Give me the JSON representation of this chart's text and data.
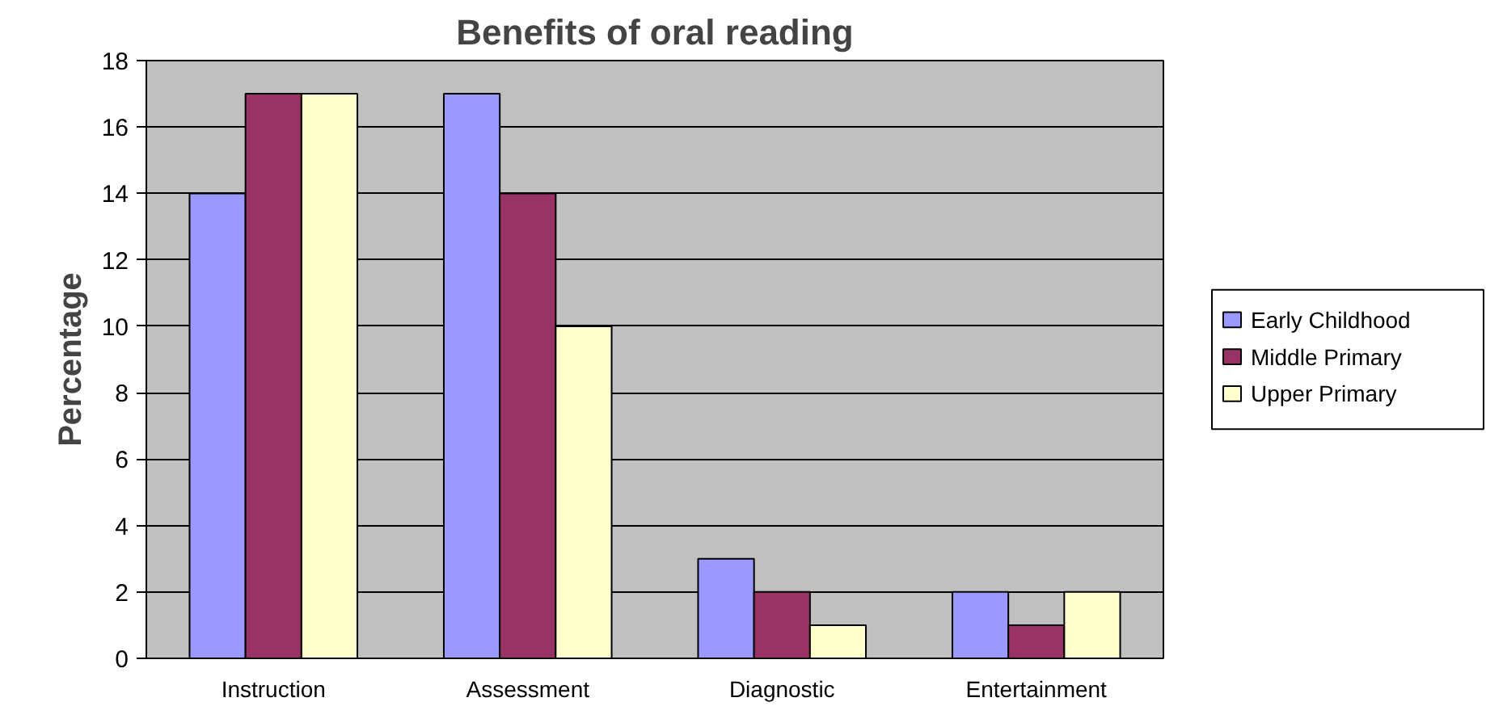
{
  "chart_data": {
    "type": "bar",
    "title": "Benefits of oral reading",
    "ylabel": "Percentage",
    "categories": [
      "Instruction",
      "Assessment",
      "Diagnostic",
      "Entertainment"
    ],
    "series": [
      {
        "name": "Early Childhood",
        "color": "#9999ff",
        "values": [
          14,
          17,
          3,
          2
        ]
      },
      {
        "name": "Middle Primary",
        "color": "#993366",
        "values": [
          17,
          14,
          2,
          1
        ]
      },
      {
        "name": "Upper Primary",
        "color": "#ffffcc",
        "values": [
          17,
          10,
          1,
          2
        ]
      }
    ],
    "ylim": [
      0,
      18
    ],
    "yticks": [
      0,
      2,
      4,
      6,
      8,
      10,
      12,
      14,
      16,
      18
    ],
    "grid": "y",
    "legend": "right"
  }
}
